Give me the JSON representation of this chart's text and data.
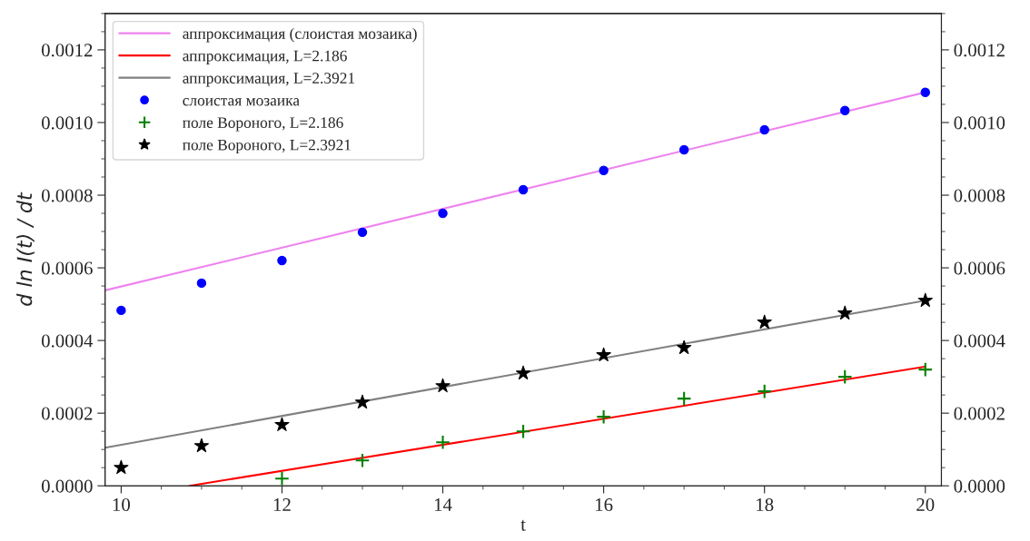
{
  "chart_data": {
    "type": "scatter",
    "xlabel": "t",
    "ylabel": "d ln I(t) / dt",
    "xlim": [
      9.8,
      20.2
    ],
    "xticks": [
      10,
      12,
      14,
      16,
      18,
      20
    ],
    "ylim": [
      0,
      0.0013
    ],
    "yticks": [
      {
        "value": 0,
        "label": "0.0000"
      },
      {
        "value": 0.0002,
        "label": "0.0002"
      },
      {
        "value": 0.0004,
        "label": "0.0004"
      },
      {
        "value": 0.0006,
        "label": "0.0006"
      },
      {
        "value": 0.0008,
        "label": "0.0008"
      },
      {
        "value": 0.001,
        "label": "0.0010"
      },
      {
        "value": 0.0012,
        "label": "0.0012"
      }
    ],
    "y2lim": [
      0,
      0.0013
    ],
    "y2ticks": [
      {
        "value": 0,
        "label": "0.0000"
      },
      {
        "value": 0.0002,
        "label": "0.0002"
      },
      {
        "value": 0.0004,
        "label": "0.0004"
      },
      {
        "value": 0.0006,
        "label": "0.0006"
      },
      {
        "value": 0.0008,
        "label": "0.0008"
      },
      {
        "value": 0.001,
        "label": "0.0010"
      },
      {
        "value": 0.0012,
        "label": "0.0012"
      }
    ],
    "grid": false,
    "legend": "top left",
    "series": [
      {
        "name": "аппроксимация (слоистая мозаика)",
        "type": "line",
        "color": "#ee82ee",
        "marker": "none",
        "x": [
          9.8,
          20
        ],
        "values": [
          0.000538,
          0.001083
        ]
      },
      {
        "name": "аппроксимация, L=2.186",
        "type": "line",
        "color": "#ff0000",
        "marker": "none",
        "x": [
          10.85,
          20
        ],
        "values": [
          0,
          0.000328
        ]
      },
      {
        "name": "аппроксимация, L=2.3921",
        "type": "line",
        "color": "#808080",
        "marker": "none",
        "x": [
          9.8,
          20
        ],
        "values": [
          0.000105,
          0.00051
        ]
      },
      {
        "name": "слоистая мозаика",
        "color": "#0000ff",
        "marker": "circle",
        "x": [
          10,
          11,
          12,
          13,
          14,
          15,
          16,
          17,
          18,
          19,
          20
        ],
        "values": [
          0.000483,
          0.000558,
          0.00062,
          0.000698,
          0.00075,
          0.000815,
          0.000868,
          0.000925,
          0.00098,
          0.001033,
          0.001083
        ]
      },
      {
        "name": "поле Вороного, L=2.186",
        "color": "#008000",
        "marker": "cross",
        "x": [
          12,
          13,
          14,
          15,
          16,
          17,
          18,
          19,
          20
        ],
        "values": [
          2e-05,
          7e-05,
          0.00012,
          0.00015,
          0.00019,
          0.00024,
          0.00026,
          0.0003,
          0.00032
        ]
      },
      {
        "name": "поле Вороного, L=2.3921",
        "color": "#000000",
        "marker": "star",
        "x": [
          10,
          11,
          12,
          13,
          14,
          15,
          16,
          17,
          18,
          19,
          20
        ],
        "values": [
          5e-05,
          0.00011,
          0.000168,
          0.00023,
          0.000275,
          0.00031,
          0.00036,
          0.00038,
          0.00045,
          0.000475,
          0.00051
        ]
      }
    ]
  }
}
